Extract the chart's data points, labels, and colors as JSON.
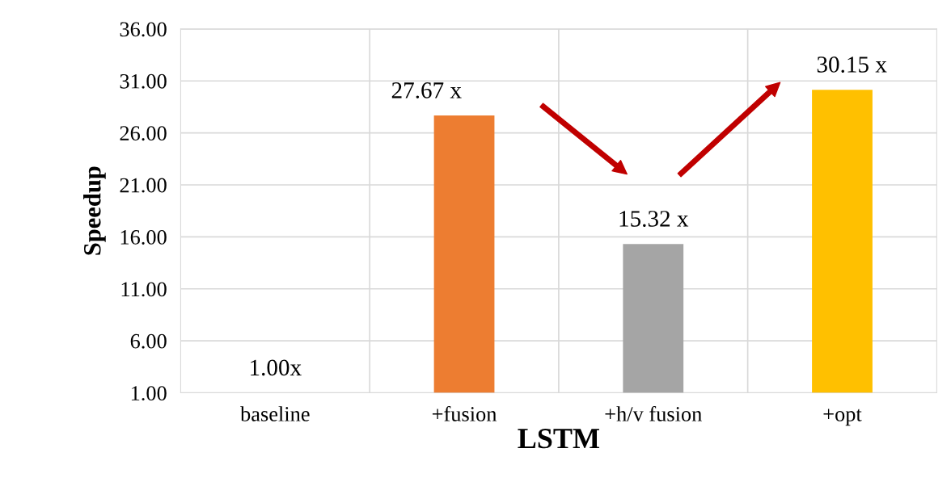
{
  "chart_data": {
    "type": "bar",
    "xlabel": "LSTM",
    "ylabel": "Speedup",
    "categories": [
      "baseline",
      "+fusion",
      "+h/v fusion",
      "+opt"
    ],
    "values": [
      1.0,
      27.67,
      15.32,
      30.15
    ],
    "colors": [
      "#4472c4",
      "#ed7d31",
      "#a5a5a5",
      "#ffc000"
    ],
    "value_labels": [
      "1.00x",
      "27.67 x",
      "15.32 x",
      "30.15 x"
    ],
    "ylim": [
      1,
      36
    ],
    "yticks": [
      {
        "value": 1,
        "label": "1.00"
      },
      {
        "value": 6,
        "label": "6.00"
      },
      {
        "value": 11,
        "label": "11.00"
      },
      {
        "value": 16,
        "label": "16.00"
      },
      {
        "value": 21,
        "label": "21.00"
      },
      {
        "value": 26,
        "label": "26.00"
      },
      {
        "value": 31,
        "label": "31.00"
      },
      {
        "value": 36,
        "label": "36.00"
      }
    ],
    "grid": true
  }
}
